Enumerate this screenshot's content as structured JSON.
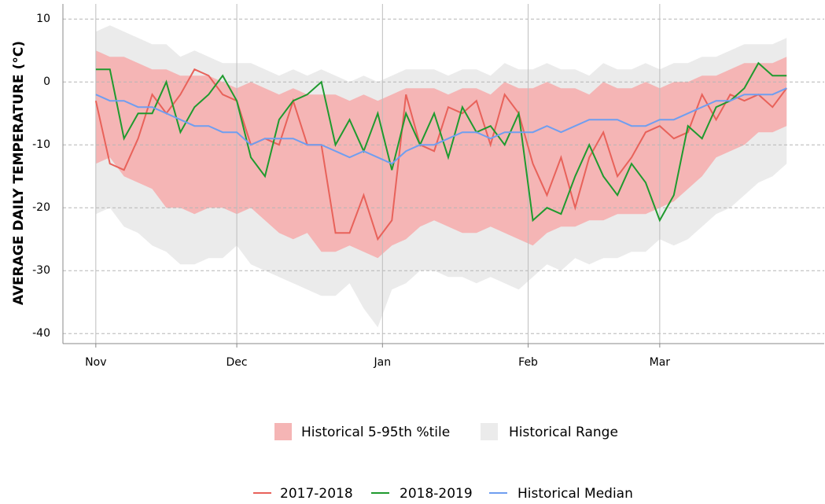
{
  "chart_data": {
    "type": "line",
    "y_label": "AVERAGE DAILY TEMPERATURE (°C)",
    "x": [
      0,
      3,
      6,
      9,
      12,
      15,
      18,
      21,
      24,
      27,
      30,
      33,
      36,
      39,
      42,
      45,
      48,
      51,
      54,
      57,
      60,
      63,
      66,
      69,
      72,
      75,
      78,
      81,
      84,
      87,
      90,
      93,
      96,
      99,
      102,
      105,
      108,
      111,
      114,
      117,
      120,
      123,
      126,
      129,
      132,
      135,
      138,
      141,
      144,
      147
    ],
    "xlim": [
      -7,
      155
    ],
    "xticks": [
      {
        "value": 0,
        "label": "Nov"
      },
      {
        "value": 30,
        "label": "Dec"
      },
      {
        "value": 61,
        "label": "Jan"
      },
      {
        "value": 92,
        "label": "Feb"
      },
      {
        "value": 120,
        "label": "Mar"
      }
    ],
    "ylim": [
      -41.6,
      12.4
    ],
    "yticks": [
      -40,
      -30,
      -20,
      -10,
      0,
      10
    ],
    "grid": true,
    "bands": [
      {
        "name": "Historical Range",
        "color": "#ebebeb",
        "upper": [
          8,
          9,
          8,
          7,
          6,
          6,
          4,
          5,
          4,
          3,
          3,
          3,
          2,
          1,
          2,
          1,
          2,
          1,
          0,
          1,
          0,
          1,
          2,
          2,
          2,
          1,
          2,
          2,
          1,
          3,
          2,
          2,
          3,
          2,
          2,
          1,
          3,
          2,
          2,
          3,
          2,
          3,
          3,
          4,
          4,
          5,
          6,
          6,
          6,
          7
        ],
        "lower": [
          -21,
          -20,
          -23,
          -24,
          -26,
          -27,
          -29,
          -29,
          -28,
          -28,
          -26,
          -29,
          -30,
          -31,
          -32,
          -33,
          -34,
          -34,
          -32,
          -36,
          -39,
          -33,
          -32,
          -30,
          -30,
          -31,
          -31,
          -32,
          -31,
          -32,
          -33,
          -31,
          -29,
          -30,
          -28,
          -29,
          -28,
          -28,
          -27,
          -27,
          -25,
          -26,
          -25,
          -23,
          -21,
          -20,
          -18,
          -16,
          -15,
          -13
        ]
      },
      {
        "name": "Historical 5-95th %tile",
        "color": "#f5b5b5",
        "upper": [
          5,
          4,
          4,
          3,
          2,
          2,
          1,
          1,
          1,
          0,
          -1,
          0,
          -1,
          -2,
          -1,
          -2,
          -2,
          -2,
          -3,
          -2,
          -3,
          -2,
          -1,
          -1,
          -1,
          -2,
          -1,
          -1,
          -2,
          0,
          -1,
          -1,
          0,
          -1,
          -1,
          -2,
          0,
          -1,
          -1,
          0,
          -1,
          0,
          0,
          1,
          1,
          2,
          3,
          3,
          3,
          4
        ],
        "lower": [
          -13,
          -12,
          -15,
          -16,
          -17,
          -20,
          -20,
          -21,
          -20,
          -20,
          -21,
          -20,
          -22,
          -24,
          -25,
          -24,
          -27,
          -27,
          -26,
          -27,
          -28,
          -26,
          -25,
          -23,
          -22,
          -23,
          -24,
          -24,
          -23,
          -24,
          -25,
          -26,
          -24,
          -23,
          -23,
          -22,
          -22,
          -21,
          -21,
          -21,
          -20,
          -19,
          -17,
          -15,
          -12,
          -11,
          -10,
          -8,
          -8,
          -7
        ]
      }
    ],
    "series": [
      {
        "name": "2017-2018",
        "color": "#e8625a",
        "values": [
          -3,
          -13,
          -14,
          -9,
          -2,
          -5,
          -2,
          2,
          1,
          -2,
          -3,
          -10,
          -9,
          -10,
          -3,
          -10,
          -10,
          -24,
          -24,
          -18,
          -25,
          -22,
          -2,
          -10,
          -11,
          -4,
          -5,
          -3,
          -10,
          -2,
          -5,
          -13,
          -18,
          -12,
          -20,
          -12,
          -8,
          -15,
          -12,
          -8,
          -7,
          -9,
          -8,
          -2,
          -6,
          -2,
          -3,
          -2,
          -4,
          -1
        ]
      },
      {
        "name": "2018-2019",
        "color": "#1f9a2e",
        "values": [
          2,
          2,
          -9,
          -5,
          -5,
          0,
          -8,
          -4,
          -2,
          1,
          -3,
          -12,
          -15,
          -6,
          -3,
          -2,
          0,
          -10,
          -6,
          -11,
          -5,
          -14,
          -5,
          -10,
          -5,
          -12,
          -4,
          -8,
          -7,
          -10,
          -5,
          -22,
          -20,
          -21,
          -15,
          -10,
          -15,
          -18,
          -13,
          -16,
          -22,
          -18,
          -7,
          -9,
          -4,
          -3,
          -1,
          3,
          1,
          1
        ]
      },
      {
        "name": "Historical Median",
        "color": "#6f9ef0",
        "values": [
          -2,
          -3,
          -3,
          -4,
          -4,
          -5,
          -6,
          -7,
          -7,
          -8,
          -8,
          -10,
          -9,
          -9,
          -9,
          -10,
          -10,
          -11,
          -12,
          -11,
          -12,
          -13,
          -11,
          -10,
          -10,
          -9,
          -8,
          -8,
          -9,
          -8,
          -8,
          -8,
          -7,
          -8,
          -7,
          -6,
          -6,
          -6,
          -7,
          -7,
          -6,
          -6,
          -5,
          -4,
          -3,
          -3,
          -2,
          -2,
          -2,
          -1
        ]
      }
    ]
  }
}
